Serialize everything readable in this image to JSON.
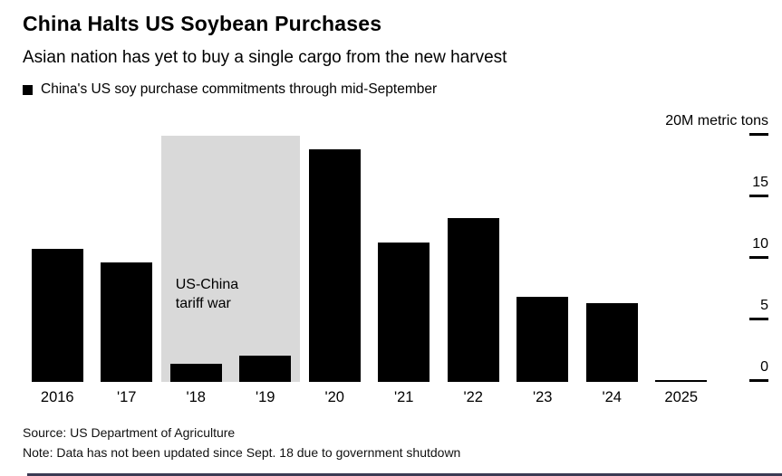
{
  "header": {
    "title": "China Halts US Soybean Purchases",
    "subtitle": "Asian nation has yet to buy a single cargo from the new harvest",
    "legend_label": "China's US soy purchase commitments through mid-September"
  },
  "chart_data": {
    "type": "bar",
    "title": "China Halts US Soybean Purchases",
    "subtitle": "Asian nation has yet to buy a single cargo from the new harvest",
    "series_name": "China's US soy purchase commitments through mid-September",
    "categories": [
      "2016",
      "'17",
      "'18",
      "'19",
      "'20",
      "'21",
      "'22",
      "'23",
      "'24",
      "2025"
    ],
    "values": [
      10.8,
      9.7,
      1.5,
      2.1,
      18.9,
      11.3,
      13.3,
      6.9,
      6.4,
      0.05
    ],
    "unit": "M metric tons",
    "ylim": [
      0,
      20
    ],
    "yticks": [
      {
        "value": 20,
        "label": "20M metric tons"
      },
      {
        "value": 15,
        "label": "15"
      },
      {
        "value": 10,
        "label": "10"
      },
      {
        "value": 5,
        "label": "5"
      },
      {
        "value": 0,
        "label": "0"
      }
    ],
    "bar_color": "#000000",
    "grid": false,
    "legend_position": "top-left",
    "annotation": {
      "text_lines": [
        "US-China",
        "tariff war"
      ],
      "region_categories": [
        "'18",
        "'19"
      ],
      "region_color": "#d9d9d9"
    }
  },
  "footer": {
    "source": "Source: US Department of Agriculture",
    "note": "Note: Data has not been updated since Sept. 18 due to government shutdown"
  }
}
